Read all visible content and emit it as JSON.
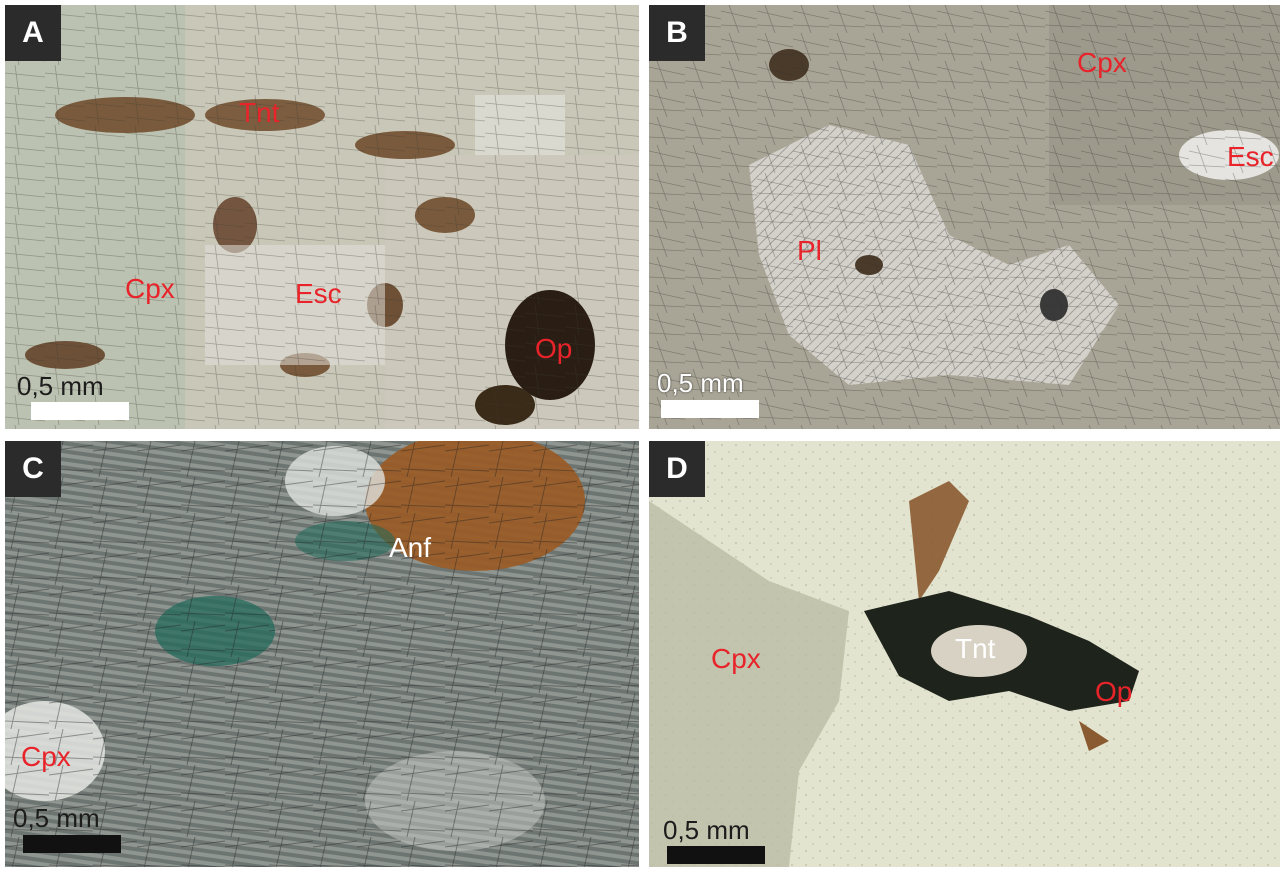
{
  "figure": {
    "background": "#ffffff",
    "panels": [
      {
        "id": "A",
        "letter": "A",
        "labels": [
          "Tnt",
          "Cpx",
          "Esc",
          "Op"
        ],
        "label_color": "#e8232a",
        "scale_text": "0,5 mm",
        "scale_bar_color": "#ffffff"
      },
      {
        "id": "B",
        "letter": "B",
        "labels": [
          "Cpx",
          "Esc",
          "Pl"
        ],
        "label_color": "#e8232a",
        "scale_text": "0,5 mm",
        "scale_bar_color": "#ffffff"
      },
      {
        "id": "C",
        "letter": "C",
        "labels": [
          "Anf",
          "Cpx"
        ],
        "label_colors": [
          "#ffffff",
          "#e8232a"
        ],
        "scale_text": "0,5 mm",
        "scale_bar_color": "#111111"
      },
      {
        "id": "D",
        "letter": "D",
        "labels": [
          "Cpx",
          "Tnt",
          "Op"
        ],
        "label_colors": [
          "#e8232a",
          "#ffffff",
          "#e8232a"
        ],
        "scale_text": "0,5 mm",
        "scale_bar_color": "#111111"
      }
    ]
  }
}
